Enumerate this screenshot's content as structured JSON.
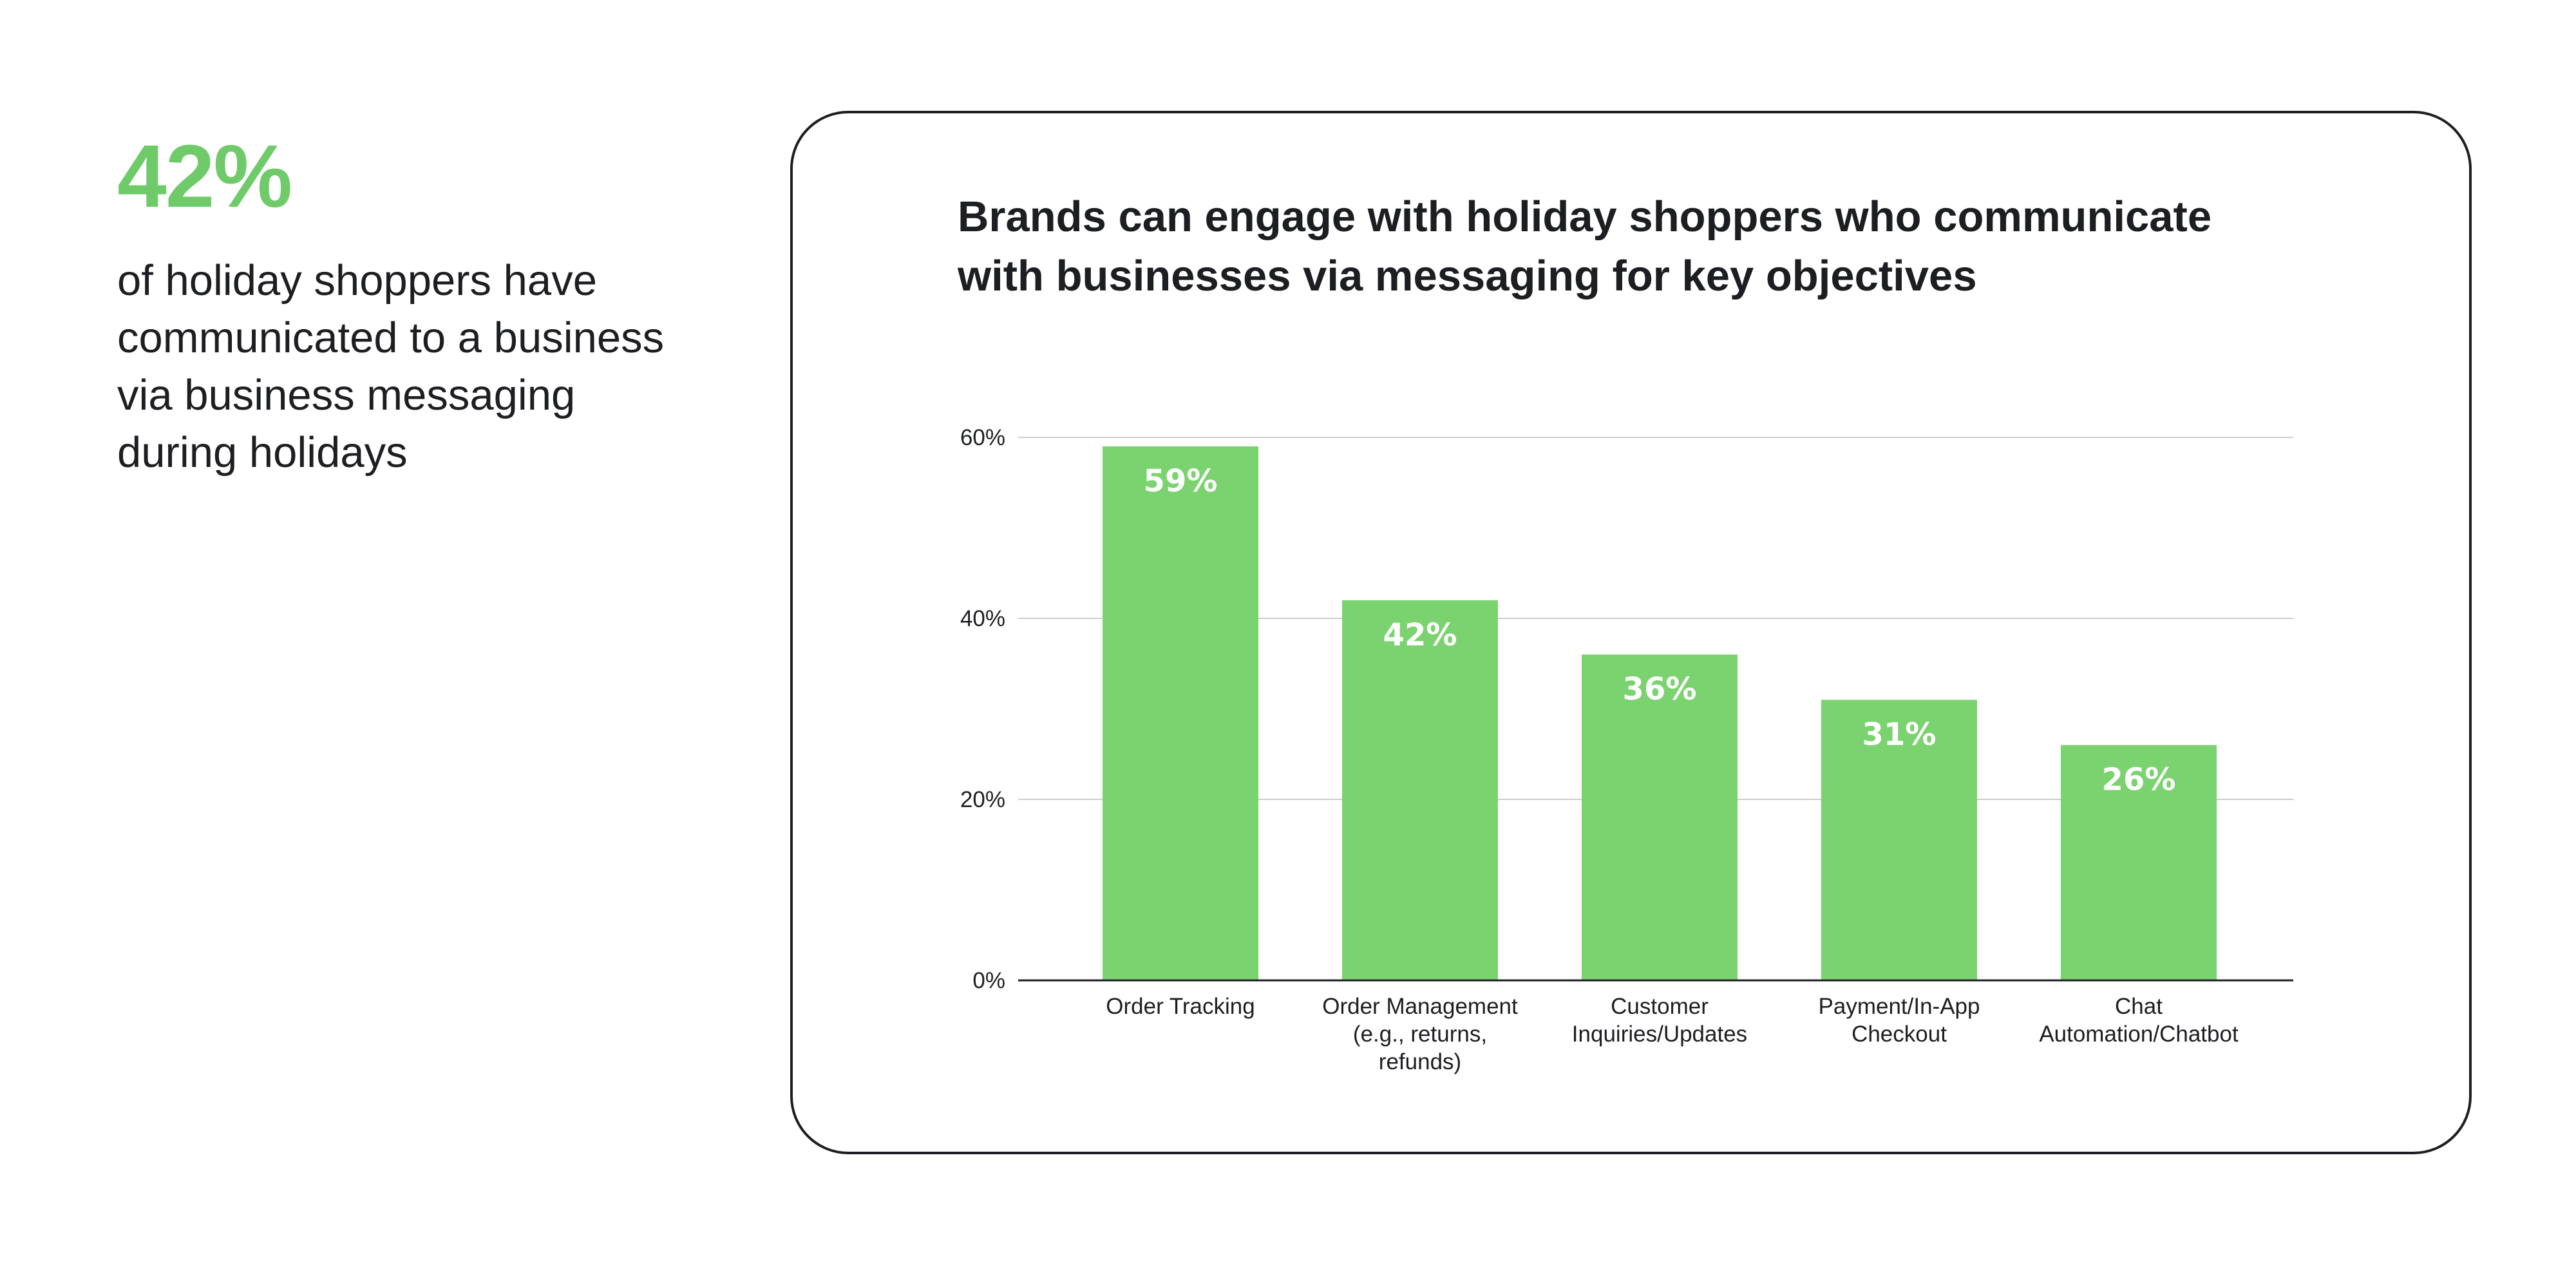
{
  "stat": {
    "value": "42%",
    "caption": "of holiday shoppers have communicated to a business via business messaging during holidays"
  },
  "colors": {
    "accent": "#7ad36f",
    "stat_accent": "#6fcb6a",
    "text": "#1c1e21",
    "gridline": "#cccccc"
  },
  "chart_data": {
    "type": "bar",
    "title": "Brands can engage with holiday shoppers who communicate with businesses via messaging for key objectives",
    "categories": [
      [
        "Order Tracking"
      ],
      [
        "Order Management",
        "(e.g., returns,",
        "refunds)"
      ],
      [
        "Customer",
        "Inquiries/Updates"
      ],
      [
        "Payment/In-App",
        "Checkout"
      ],
      [
        "Chat",
        "Automation/Chatbot"
      ]
    ],
    "values": [
      59,
      42,
      36,
      31,
      26
    ],
    "data_labels": [
      "59%",
      "42%",
      "36%",
      "31%",
      "26%"
    ],
    "y_ticks": [
      "0%",
      "20%",
      "40%",
      "60%"
    ],
    "y_tick_values": [
      0,
      20,
      40,
      60
    ],
    "ylim": [
      0,
      60
    ],
    "grid": true,
    "legend": "none"
  }
}
